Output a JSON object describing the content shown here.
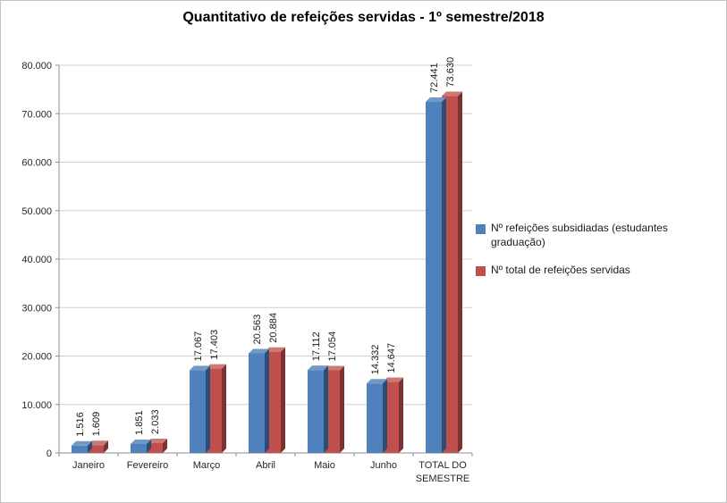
{
  "chart_data": {
    "type": "bar",
    "style": "3d-clustered-column",
    "title": "Quantitativo de refeições servidas - 1º semestre/2018",
    "categories": [
      "Janeiro",
      "Fevereiro",
      "Março",
      "Abril",
      "Maio",
      "Junho",
      "TOTAL DO\nSEMESTRE"
    ],
    "series": [
      {
        "name": "Nº refeições subsidiadas (estudantes graduação)",
        "color": "#4F81BD",
        "color_side": "#2d4d74",
        "color_top": "#7299c6",
        "values": [
          1516,
          1851,
          17067,
          20563,
          17112,
          14332,
          72441
        ],
        "labels": [
          "1.516",
          "1.851",
          "17.067",
          "20.563",
          "17.112",
          "14.332",
          "72.441"
        ]
      },
      {
        "name": "Nº total de refeições servidas",
        "color": "#C0504D",
        "color_side": "#7c3230",
        "color_top": "#cd7976",
        "values": [
          1609,
          2033,
          17403,
          20884,
          17054,
          14647,
          73630
        ],
        "labels": [
          "1.609",
          "2.033",
          "17.403",
          "20.884",
          "17.054",
          "14.647",
          "73.630"
        ]
      }
    ],
    "y_axis": {
      "min": 0,
      "max": 80000,
      "tick_interval": 10000,
      "tick_labels": [
        "0",
        "10.000",
        "20.000",
        "30.000",
        "40.000",
        "50.000",
        "60.000",
        "70.000",
        "80.000"
      ]
    },
    "legend_position": "right",
    "gridlines": true
  },
  "colors": {
    "gridline": "#cfcfcf",
    "axis": "#8c8c8c",
    "text": "#262626",
    "background": "#ffffff",
    "border": "#c3c3c3"
  }
}
